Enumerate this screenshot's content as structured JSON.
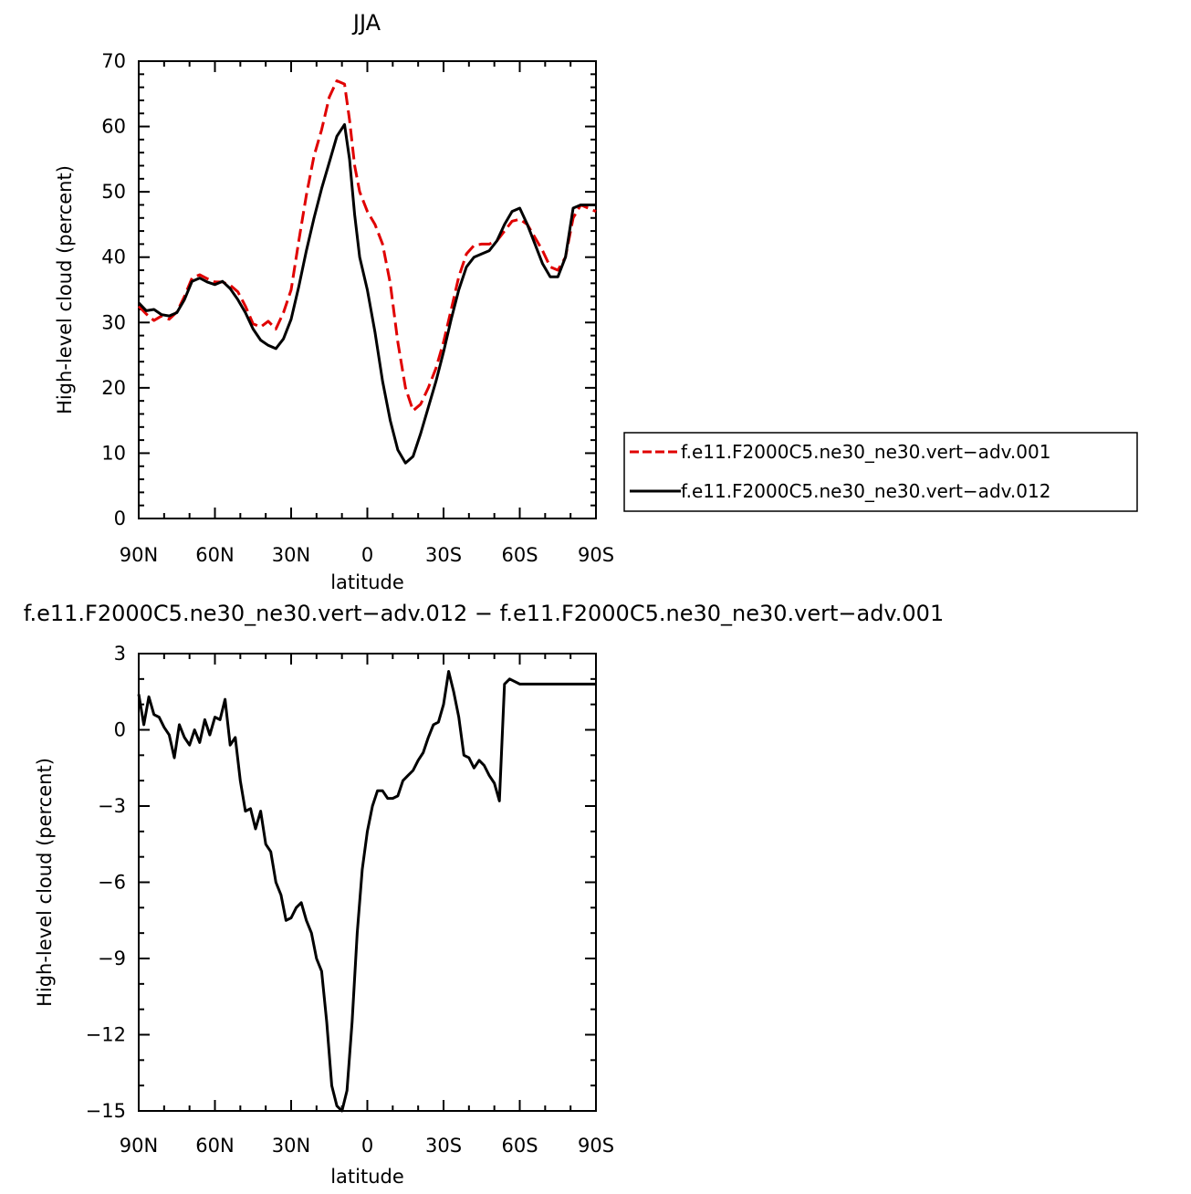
{
  "chart_data": [
    {
      "type": "line",
      "title": "JJA",
      "xlabel": "latitude",
      "ylabel": "High-level cloud (percent)",
      "xlim": [
        -90,
        90
      ],
      "ylim": [
        0,
        70
      ],
      "x_ticks": [
        {
          "value": -90,
          "label": "90N"
        },
        {
          "value": -60,
          "label": "60N"
        },
        {
          "value": -30,
          "label": "30N"
        },
        {
          "value": 0,
          "label": "0"
        },
        {
          "value": 30,
          "label": "30S"
        },
        {
          "value": 60,
          "label": "60S"
        },
        {
          "value": 90,
          "label": "90S"
        }
      ],
      "y_ticks": [
        0,
        10,
        20,
        30,
        40,
        50,
        60,
        70
      ],
      "legend": {
        "position": "right"
      },
      "series": [
        {
          "name": "f.e11.F2000C5.ne30_ne30.vert−adv.001",
          "color": "#e00000",
          "dash": "dashed",
          "x": [
            -90,
            -87,
            -84,
            -81,
            -78,
            -75,
            -72,
            -69,
            -66,
            -63,
            -60,
            -57,
            -54,
            -51,
            -48,
            -45,
            -42,
            -39,
            -36,
            -33,
            -30,
            -27,
            -24,
            -21,
            -18,
            -15,
            -12,
            -9,
            -7,
            -5,
            -3,
            0,
            3,
            6,
            9,
            12,
            15,
            18,
            21,
            24,
            27,
            30,
            33,
            36,
            39,
            42,
            45,
            48,
            51,
            54,
            57,
            60,
            63,
            66,
            69,
            72,
            75,
            78,
            81,
            84,
            87,
            90
          ],
          "y": [
            32.5,
            31.3,
            30.3,
            31.0,
            30.5,
            31.6,
            34.0,
            36.8,
            37.3,
            36.7,
            36.2,
            36.2,
            35.7,
            34.7,
            32.5,
            29.8,
            29.3,
            30.2,
            29.0,
            31.5,
            35.0,
            42.5,
            49.5,
            55.5,
            59.5,
            64.5,
            67.0,
            66.5,
            61.0,
            54.0,
            50.0,
            47.0,
            45.0,
            42.0,
            36.0,
            27.0,
            20.0,
            16.5,
            17.5,
            20.0,
            23.0,
            27.0,
            32.0,
            37.0,
            40.5,
            41.8,
            42.0,
            42.0,
            42.5,
            44.0,
            45.5,
            45.8,
            45.0,
            43.0,
            41.0,
            38.5,
            38.0,
            40.0,
            46.0,
            48.0,
            47.5,
            47.0
          ]
        },
        {
          "name": "f.e11.F2000C5.ne30_ne30.vert−adv.012",
          "color": "#000000",
          "dash": "solid",
          "x": [
            -90,
            -87,
            -84,
            -81,
            -78,
            -75,
            -72,
            -69,
            -66,
            -63,
            -60,
            -57,
            -54,
            -51,
            -48,
            -45,
            -42,
            -39,
            -36,
            -33,
            -30,
            -27,
            -24,
            -21,
            -18,
            -15,
            -12,
            -9,
            -7,
            -5,
            -3,
            0,
            3,
            6,
            9,
            12,
            15,
            18,
            21,
            24,
            27,
            30,
            33,
            36,
            39,
            42,
            45,
            48,
            51,
            54,
            57,
            60,
            63,
            66,
            69,
            72,
            75,
            78,
            81,
            84,
            87,
            90
          ],
          "y": [
            33.0,
            31.8,
            32.0,
            31.2,
            31.0,
            31.5,
            33.5,
            36.3,
            36.8,
            36.2,
            35.8,
            36.3,
            35.2,
            33.5,
            31.5,
            29.0,
            27.3,
            26.5,
            26.0,
            27.5,
            30.5,
            35.5,
            41.0,
            46.0,
            50.5,
            54.5,
            58.5,
            60.3,
            55.0,
            46.5,
            40.0,
            35.0,
            28.5,
            21.0,
            15.0,
            10.5,
            8.5,
            9.5,
            13.0,
            17.0,
            21.0,
            25.5,
            30.5,
            35.0,
            38.5,
            40.0,
            40.5,
            41.0,
            42.5,
            45.0,
            47.0,
            47.5,
            45.0,
            42.0,
            39.0,
            37.0,
            37.0,
            40.0,
            47.5,
            48.0,
            48.0,
            48.0
          ]
        }
      ]
    },
    {
      "type": "line",
      "title": "f.e11.F2000C5.ne30_ne30.vert−adv.012 − f.e11.F2000C5.ne30_ne30.vert−adv.001",
      "xlabel": "latitude",
      "ylabel": "High-level cloud (percent)",
      "xlim": [
        -90,
        90
      ],
      "ylim": [
        -15,
        3
      ],
      "x_ticks": [
        {
          "value": -90,
          "label": "90N"
        },
        {
          "value": -60,
          "label": "60N"
        },
        {
          "value": -30,
          "label": "30N"
        },
        {
          "value": 0,
          "label": "0"
        },
        {
          "value": 30,
          "label": "30S"
        },
        {
          "value": 60,
          "label": "60S"
        },
        {
          "value": 90,
          "label": "90S"
        }
      ],
      "y_ticks": [
        3,
        0,
        -3,
        -6,
        -9,
        -12,
        -15
      ],
      "series": [
        {
          "color": "#000000",
          "dash": "solid",
          "x": [
            -90,
            -88,
            -86,
            -84,
            -82,
            -80,
            -78,
            -76,
            -74,
            -72,
            -70,
            -68,
            -66,
            -64,
            -62,
            -60,
            -58,
            -56,
            -54,
            -52,
            -50,
            -48,
            -46,
            -44,
            -42,
            -40,
            -38,
            -36,
            -34,
            -32,
            -30,
            -28,
            -26,
            -24,
            -22,
            -20,
            -18,
            -16,
            -14,
            -12,
            -10,
            -8,
            -6,
            -4,
            -2,
            0,
            2,
            4,
            6,
            8,
            10,
            12,
            14,
            16,
            18,
            20,
            22,
            24,
            26,
            28,
            30,
            32,
            34,
            36,
            38,
            40,
            42,
            44,
            46,
            48,
            50,
            52,
            54,
            56,
            58,
            60,
            62,
            64,
            66,
            68,
            70,
            72,
            74,
            76,
            78,
            80,
            82,
            84,
            86,
            88,
            90
          ],
          "y": [
            1.4,
            0.2,
            1.3,
            0.6,
            0.5,
            0.1,
            -0.2,
            -1.1,
            0.2,
            -0.3,
            -0.6,
            0.0,
            -0.5,
            0.4,
            -0.2,
            0.5,
            0.4,
            1.2,
            -0.6,
            -0.3,
            -2.0,
            -3.2,
            -3.1,
            -3.9,
            -3.2,
            -4.5,
            -4.8,
            -6.0,
            -6.5,
            -7.5,
            -7.4,
            -7.0,
            -6.8,
            -7.5,
            -8.0,
            -9.0,
            -9.5,
            -11.5,
            -14.0,
            -14.8,
            -15.0,
            -14.2,
            -11.5,
            -8.0,
            -5.5,
            -4.0,
            -3.0,
            -2.4,
            -2.4,
            -2.7,
            -2.7,
            -2.6,
            -2.0,
            -1.8,
            -1.6,
            -1.2,
            -0.9,
            -0.3,
            0.2,
            0.3,
            1.0,
            2.3,
            1.5,
            0.5,
            -1.0,
            -1.1,
            -1.5,
            -1.2,
            -1.4,
            -1.8,
            -2.1,
            -2.8,
            1.8,
            2.0,
            1.9,
            1.8,
            1.8,
            1.8,
            1.8,
            1.8,
            1.8,
            1.8,
            1.8,
            1.8,
            1.8,
            1.8,
            1.8,
            1.8,
            1.8,
            1.8,
            1.8
          ]
        }
      ]
    }
  ]
}
